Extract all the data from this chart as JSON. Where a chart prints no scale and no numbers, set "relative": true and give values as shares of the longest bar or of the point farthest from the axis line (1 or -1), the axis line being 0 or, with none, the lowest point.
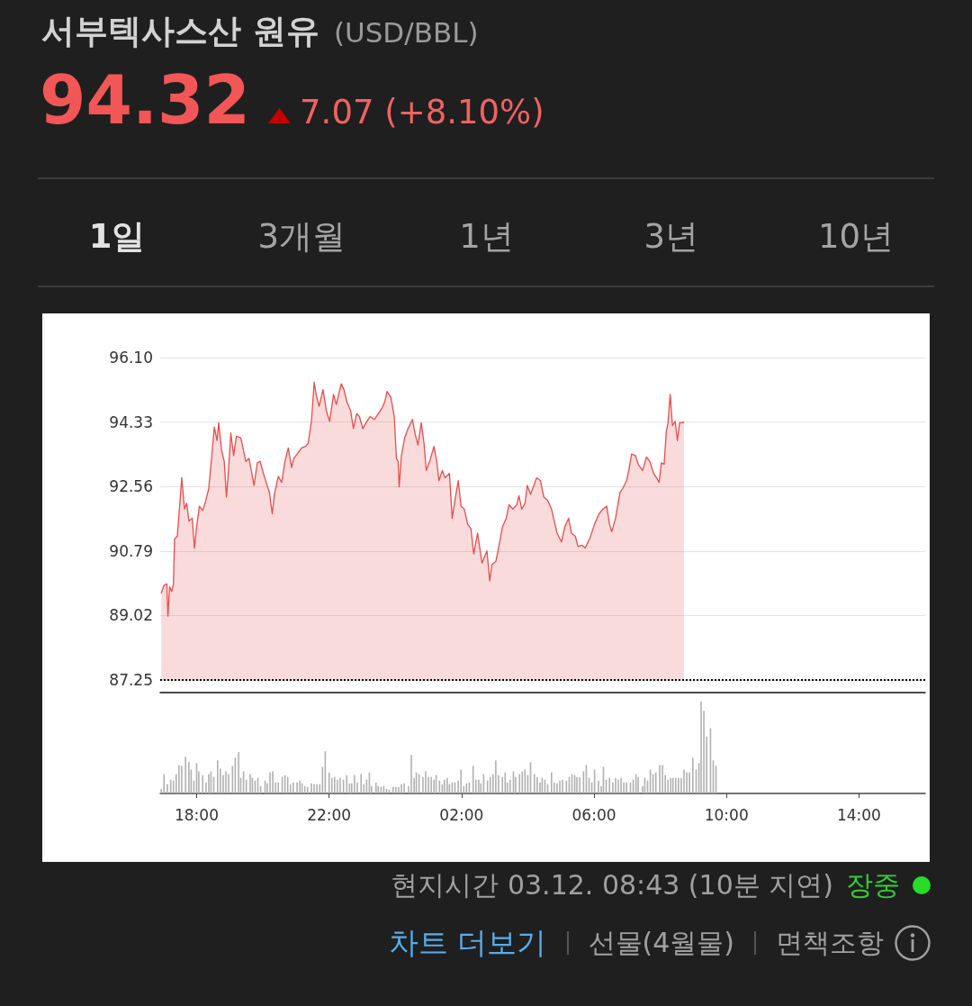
{
  "chart_data": [
    {
      "type": "area",
      "title": "서부텍사스산 원유",
      "subtitle": "(USD/BBL)",
      "annotations": [
        "94.32",
        "7.07 (+8.10%)",
        "1일",
        "3개월",
        "1년",
        "3년",
        "10년",
        "현지시간 03.12. 08:43 (10분 지연)",
        "장중",
        "차트 더보기",
        "선물(4월물)",
        "면책조항"
      ],
      "x": [
        "--03-11T16:56",
        "--03-11T17:01",
        "--03-11T17:06",
        "--03-11T17:08",
        "--03-11T17:11",
        "--03-11T17:15",
        "--03-11T17:18",
        "--03-11T17:20",
        "--03-11T17:25",
        "--03-11T17:28",
        "--03-11T17:33",
        "--03-11T17:38",
        "--03-11T17:42",
        "--03-11T17:46",
        "--03-11T17:52",
        "--03-11T17:56",
        "--03-11T18:00",
        "--03-11T18:05",
        "--03-11T18:11",
        "--03-11T18:16",
        "--03-11T18:22",
        "--03-11T18:27",
        "--03-11T18:32",
        "--03-11T18:37",
        "--03-11T18:40",
        "--03-11T18:45",
        "--03-11T18:50",
        "--03-11T18:54",
        "--03-11T18:57",
        "--03-11T19:02",
        "--03-11T19:07",
        "--03-11T19:12",
        "--03-11T19:20",
        "--03-11T19:24",
        "--03-11T19:29",
        "--03-11T19:35",
        "--03-11T19:40",
        "--03-11T19:44",
        "--03-11T19:50",
        "--03-11T19:55",
        "--03-11T20:01",
        "--03-11T20:06",
        "--03-11T20:12",
        "--03-11T20:17",
        "--03-11T20:21",
        "--03-11T20:28",
        "--03-11T20:34",
        "--03-11T20:40",
        "--03-11T20:46",
        "--03-11T20:52",
        "--03-11T20:56",
        "--03-11T21:02",
        "--03-11T21:10",
        "--03-11T21:17",
        "--03-11T21:22",
        "--03-11T21:28",
        "--03-11T21:33",
        "--03-11T21:37",
        "--03-11T21:42",
        "--03-11T21:49",
        "--03-11T21:55",
        "--03-11T22:01",
        "--03-11T22:08",
        "--03-11T22:13",
        "--03-11T22:22",
        "--03-11T22:27",
        "--03-11T22:32",
        "--03-11T22:39",
        "--03-11T22:44",
        "--03-11T22:50",
        "--03-11T22:55",
        "--03-11T23:01",
        "--03-11T23:07",
        "--03-11T23:14",
        "--03-11T23:22",
        "--03-11T23:29",
        "--03-11T23:36",
        "--03-11T23:41",
        "--03-11T23:45",
        "--03-11T23:52",
        "--03-11T23:58",
        "--03-12T00:02",
        "--03-12T00:05",
        "--03-12T00:07",
        "--03-12T00:11",
        "--03-12T00:17",
        "--03-12T00:23",
        "--03-12T00:31",
        "--03-12T00:36",
        "--03-12T00:41",
        "--03-12T00:47",
        "--03-12T00:52",
        "--03-12T00:56",
        "--03-12T01:03",
        "--03-12T01:10",
        "--03-12T01:15",
        "--03-12T01:19",
        "--03-12T01:25",
        "--03-12T01:30",
        "--03-12T01:38",
        "--03-12T01:43",
        "--03-12T01:49",
        "--03-12T01:54",
        "--03-12T01:59",
        "--03-12T02:05",
        "--03-12T02:11",
        "--03-12T02:17",
        "--03-12T02:22",
        "--03-12T02:29",
        "--03-12T02:37",
        "--03-12T02:46",
        "--03-12T02:51",
        "--03-12T02:55",
        "--03-12T03:02",
        "--03-12T03:07",
        "--03-12T03:14",
        "--03-12T03:21",
        "--03-12T03:26",
        "--03-12T03:33",
        "--03-12T03:40",
        "--03-12T03:44",
        "--03-12T03:49",
        "--03-12T03:55",
        "--03-12T03:59",
        "--03-12T04:05",
        "--03-12T04:11",
        "--03-12T04:16",
        "--03-12T04:23",
        "--03-12T04:29",
        "--03-12T04:36",
        "--03-12T04:43",
        "--03-12T04:48",
        "--03-12T04:53",
        "--03-12T05:01",
        "--03-12T05:07",
        "--03-12T05:14",
        "--03-12T05:19",
        "--03-12T05:26",
        "--03-12T05:31",
        "--03-12T05:38",
        "--03-12T05:44",
        "--03-12T05:53",
        "--03-12T06:01",
        "--03-12T06:09",
        "--03-12T06:16",
        "--03-12T06:23",
        "--03-12T06:28",
        "--03-12T06:32",
        "--03-12T06:39",
        "--03-12T06:47",
        "--03-12T06:52",
        "--03-12T06:59",
        "--03-12T07:03",
        "--03-12T07:08",
        "--03-12T07:15",
        "--03-12T07:20",
        "--03-12T07:28",
        "--03-12T07:35",
        "--03-12T07:41",
        "--03-12T07:48",
        "--03-12T07:55",
        "--03-12T07:58",
        "--03-12T08:02",
        "--03-12T08:07",
        "--03-12T08:11",
        "--03-12T08:14",
        "--03-12T08:18",
        "--03-12T08:22",
        "--03-12T08:27",
        "--03-12T08:31",
        "--03-12T08:35",
        "--03-12T08:43"
      ],
      "values": [
        89.64,
        89.85,
        89.89,
        89.0,
        89.81,
        89.68,
        89.89,
        91.12,
        91.2,
        91.77,
        92.8,
        91.94,
        92.1,
        91.61,
        91.69,
        90.87,
        91.45,
        92.02,
        91.9,
        92.14,
        92.51,
        93.33,
        94.19,
        93.82,
        94.31,
        93.58,
        93.25,
        92.27,
        92.84,
        94.03,
        93.41,
        93.94,
        93.9,
        93.62,
        93.25,
        93.33,
        92.92,
        92.59,
        93.21,
        93.25,
        92.92,
        92.67,
        92.39,
        91.81,
        92.35,
        92.84,
        92.67,
        93.25,
        93.62,
        93.08,
        93.33,
        93.45,
        93.62,
        93.66,
        93.74,
        94.35,
        95.42,
        95.05,
        94.76,
        95.22,
        94.64,
        94.35,
        95.09,
        94.81,
        95.38,
        95.22,
        94.89,
        94.64,
        94.15,
        94.56,
        94.48,
        94.15,
        94.31,
        94.48,
        94.4,
        94.56,
        94.72,
        94.89,
        95.17,
        95.01,
        94.48,
        93.33,
        93.25,
        92.55,
        93.41,
        93.9,
        94.15,
        94.4,
        93.99,
        93.7,
        94.31,
        93.74,
        93.0,
        93.29,
        93.66,
        93.25,
        92.72,
        93.0,
        92.8,
        92.92,
        91.69,
        92.27,
        92.72,
        92.02,
        91.94,
        91.53,
        91.4,
        90.71,
        91.28,
        90.46,
        90.79,
        89.97,
        90.42,
        90.5,
        90.87,
        91.45,
        91.69,
        92.06,
        91.94,
        92.06,
        92.31,
        91.94,
        92.1,
        92.59,
        92.35,
        92.59,
        92.8,
        92.72,
        92.27,
        92.18,
        91.94,
        91.61,
        91.28,
        91.04,
        91.45,
        91.69,
        91.28,
        91.2,
        90.91,
        90.95,
        90.87,
        91.16,
        91.53,
        91.81,
        91.94,
        92.02,
        91.53,
        91.32,
        91.69,
        92.39,
        92.51,
        92.72,
        93.0,
        93.45,
        93.41,
        93.17,
        93.0,
        93.37,
        93.25,
        92.92,
        92.76,
        92.67,
        93.21,
        93.17,
        94.07,
        94.31,
        95.09,
        94.23,
        94.35,
        93.82,
        94.31,
        94.32
      ],
      "color": "#e84c4c",
      "xlim": [
        "--03-11T16:54",
        "--03-12T16:00"
      ],
      "ylim": [
        87.25,
        96.1
      ],
      "yticks": [
        87.25,
        89.02,
        90.79,
        92.56,
        94.33,
        {
          "value": 96.1,
          "label": "96.10"
        }
      ],
      "grid": "y",
      "tick_labels": "y",
      "marker": "none",
      "line_style": "solid",
      "ref_lines": [
        {
          "axis": "y",
          "value": 87.25,
          "color": "#000000",
          "line_style": "dotted"
        }
      ]
    },
    {
      "type": "bar",
      "relative": true,
      "color": "#b0b0b0",
      "xlim": [
        "--03-11T16:54",
        "--03-12T16:00"
      ],
      "xticks": [
        {
          "value": "--03-11T18:00",
          "label": "18:00"
        },
        {
          "value": "--03-11T22:00",
          "label": "22:00"
        },
        {
          "value": "--03-12T02:00",
          "label": "02:00"
        },
        {
          "value": "--03-12T06:00",
          "label": "06:00"
        },
        {
          "value": "--03-12T10:00",
          "label": "10:00"
        },
        {
          "value": "--03-12T14:00",
          "label": "14:00"
        }
      ],
      "grid": false,
      "tick_labels": "x",
      "x": [
        "--03-11T16:56",
        "--03-11T17:01",
        "--03-11T17:07",
        "--03-11T17:13",
        "--03-11T17:18",
        "--03-11T17:23",
        "--03-11T17:28",
        "--03-11T17:33",
        "--03-11T17:40",
        "--03-11T17:46",
        "--03-11T17:50",
        "--03-11T17:55",
        "--03-11T18:00",
        "--03-11T18:04",
        "--03-11T18:11",
        "--03-11T18:17",
        "--03-11T18:22",
        "--03-11T18:26",
        "--03-11T18:31",
        "--03-11T18:38",
        "--03-11T18:43",
        "--03-11T18:48",
        "--03-11T18:53",
        "--03-11T18:58",
        "--03-11T19:05",
        "--03-11T19:10",
        "--03-11T19:16",
        "--03-11T19:20",
        "--03-11T19:25",
        "--03-11T19:30",
        "--03-11T19:37",
        "--03-11T19:41",
        "--03-11T19:46",
        "--03-11T19:51",
        "--03-11T19:56",
        "--03-11T20:04",
        "--03-11T20:08",
        "--03-11T20:13",
        "--03-11T20:18",
        "--03-11T20:23",
        "--03-11T20:28",
        "--03-11T20:35",
        "--03-11T20:40",
        "--03-11T20:45",
        "--03-11T20:50",
        "--03-11T20:55",
        "--03-11T21:02",
        "--03-11T21:07",
        "--03-11T21:11",
        "--03-11T21:16",
        "--03-11T21:21",
        "--03-11T21:28",
        "--03-11T21:33",
        "--03-11T21:38",
        "--03-11T21:43",
        "--03-11T21:48",
        "--03-11T21:53",
        "--03-11T22:00",
        "--03-11T22:05",
        "--03-11T22:10",
        "--03-11T22:15",
        "--03-11T22:20",
        "--03-11T22:26",
        "--03-11T22:32",
        "--03-11T22:37",
        "--03-11T22:41",
        "--03-11T22:46",
        "--03-11T22:51",
        "--03-11T22:58",
        "--03-11T23:03",
        "--03-11T23:08",
        "--03-11T23:13",
        "--03-11T23:17",
        "--03-11T23:25",
        "--03-11T23:29",
        "--03-11T23:34",
        "--03-11T23:39",
        "--03-11T23:44",
        "--03-11T23:49",
        "--03-11T23:56",
        "--03-12T00:01",
        "--03-12T00:06",
        "--03-12T00:11",
        "--03-12T00:16",
        "--03-12T00:24",
        "--03-12T00:29",
        "--03-12T00:34",
        "--03-12T00:38",
        "--03-12T00:43",
        "--03-12T00:50",
        "--03-12T00:55",
        "--03-12T01:00",
        "--03-12T01:05",
        "--03-12T01:10",
        "--03-12T01:14",
        "--03-12T01:20",
        "--03-12T01:25",
        "--03-12T01:29",
        "--03-12T01:34",
        "--03-12T01:38",
        "--03-12T01:43",
        "--03-12T01:48",
        "--03-12T01:54",
        "--03-12T01:59",
        "--03-12T02:04",
        "--03-12T02:09",
        "--03-12T02:14",
        "--03-12T02:21",
        "--03-12T02:26",
        "--03-12T02:31",
        "--03-12T02:35",
        "--03-12T02:40",
        "--03-12T02:47",
        "--03-12T02:52",
        "--03-12T02:57",
        "--03-12T03:02",
        "--03-12T03:07",
        "--03-12T03:14",
        "--03-12T03:19",
        "--03-12T03:23",
        "--03-12T03:28",
        "--03-12T03:34",
        "--03-12T03:38",
        "--03-12T03:45",
        "--03-12T03:50",
        "--03-12T03:55",
        "--03-12T04:00",
        "--03-12T04:05",
        "--03-12T04:12",
        "--03-12T04:17",
        "--03-12T04:22",
        "--03-12T04:26",
        "--03-12T04:31",
        "--03-12T04:36",
        "--03-12T04:43",
        "--03-12T04:48",
        "--03-12T04:53",
        "--03-12T04:58",
        "--03-12T05:03",
        "--03-12T05:10",
        "--03-12T05:15",
        "--03-12T05:20",
        "--03-12T05:25",
        "--03-12T05:29",
        "--03-12T05:34",
        "--03-12T05:41",
        "--03-12T05:46",
        "--03-12T05:51",
        "--03-12T05:56",
        "--03-12T06:01",
        "--03-12T06:08",
        "--03-12T06:13",
        "--03-12T06:17",
        "--03-12T06:22",
        "--03-12T06:28",
        "--03-12T06:34",
        "--03-12T06:39",
        "--03-12T06:44",
        "--03-12T06:49",
        "--03-12T06:54",
        "--03-12T06:59",
        "--03-12T07:06",
        "--03-12T07:11",
        "--03-12T07:16",
        "--03-12T07:20",
        "--03-12T07:28",
        "--03-12T07:32",
        "--03-12T07:37",
        "--03-12T07:42",
        "--03-12T07:47",
        "--03-12T07:52",
        "--03-12T07:59",
        "--03-12T08:04",
        "--03-12T08:09",
        "--03-12T08:14",
        "--03-12T08:19",
        "--03-12T08:23",
        "--03-12T08:28",
        "--03-12T08:33",
        "--03-12T08:38",
        "--03-12T08:43",
        "--03-12T08:48",
        "--03-12T08:53",
        "--03-12T08:59",
        "--03-12T09:05",
        "--03-12T09:10",
        "--03-12T09:14",
        "--03-12T09:19",
        "--03-12T09:24",
        "--03-12T09:31",
        "--03-12T09:36",
        "--03-12T09:41"
      ],
      "values": [
        0.05,
        0.21,
        0.1,
        0.15,
        0.14,
        0.21,
        0.31,
        0.3,
        0.4,
        0.34,
        0.26,
        0.14,
        0.33,
        0.24,
        0.2,
        0.12,
        0.21,
        0.24,
        0.18,
        0.36,
        0.27,
        0.2,
        0.24,
        0.21,
        0.3,
        0.39,
        0.45,
        0.17,
        0.24,
        0.15,
        0.21,
        0.17,
        0.14,
        0.17,
        0.08,
        0.14,
        0.11,
        0.23,
        0.24,
        0.12,
        0.12,
        0.18,
        0.2,
        0.18,
        0.1,
        0.12,
        0.12,
        0.14,
        0.11,
        0.08,
        0.07,
        0.11,
        0.1,
        0.1,
        0.1,
        0.29,
        0.46,
        0.23,
        0.17,
        0.18,
        0.15,
        0.17,
        0.15,
        0.2,
        0.11,
        0.11,
        0.2,
        0.12,
        0.21,
        0.1,
        0.15,
        0.23,
        0.08,
        0.12,
        0.08,
        0.07,
        0.08,
        0.05,
        0.04,
        0.07,
        0.07,
        0.07,
        0.1,
        0.11,
        0.08,
        0.42,
        0.17,
        0.23,
        0.21,
        0.18,
        0.24,
        0.18,
        0.18,
        0.15,
        0.2,
        0.14,
        0.1,
        0.15,
        0.17,
        0.1,
        0.12,
        0.12,
        0.14,
        0.26,
        0.08,
        0.11,
        0.12,
        0.3,
        0.15,
        0.15,
        0.11,
        0.21,
        0.14,
        0.18,
        0.21,
        0.36,
        0.2,
        0.18,
        0.23,
        0.12,
        0.15,
        0.24,
        0.18,
        0.21,
        0.24,
        0.26,
        0.2,
        0.34,
        0.21,
        0.18,
        0.12,
        0.17,
        0.15,
        0.1,
        0.23,
        0.12,
        0.11,
        0.14,
        0.15,
        0.14,
        0.18,
        0.21,
        0.2,
        0.18,
        0.18,
        0.24,
        0.31,
        0.17,
        0.12,
        0.26,
        0.14,
        0.08,
        0.29,
        0.15,
        0.17,
        0.12,
        0.17,
        0.15,
        0.17,
        0.12,
        0.12,
        0.12,
        0.15,
        0.21,
        0.18,
        0.08,
        0.17,
        0.14,
        0.26,
        0.21,
        0.23,
        0.31,
        0.31,
        0.2,
        0.15,
        0.17,
        0.17,
        0.17,
        0.17,
        0.17,
        0.26,
        0.23,
        0.23,
        0.39,
        0.26,
        0.33,
        1,
        0.9,
        0.62,
        0.71,
        0.36,
        0.3
      ]
    }
  ]
}
